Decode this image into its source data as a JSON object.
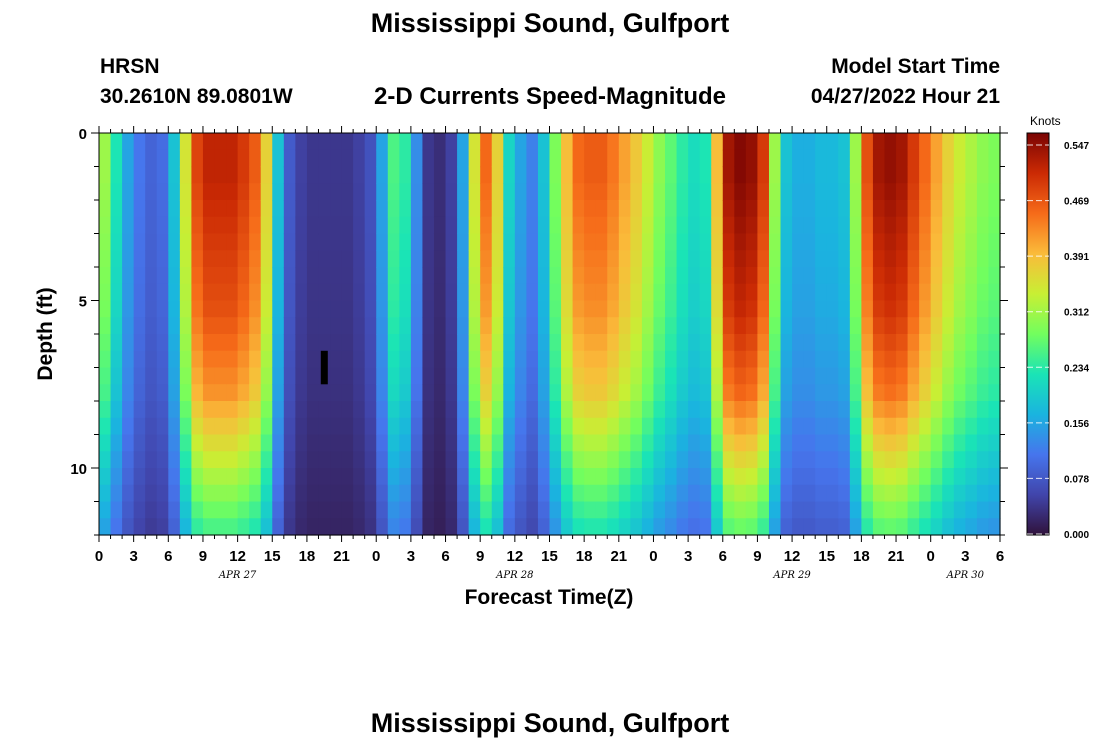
{
  "header": {
    "title": "Mississippi Sound, Gulfport",
    "station": "HRSN",
    "coordinates": "30.2610N  89.0801W",
    "subtitle": "2-D Currents Speed-Magnitude",
    "model_start_label": "Model Start Time",
    "model_start_value": "04/27/2022 Hour 21"
  },
  "footer": {
    "title": "Mississippi Sound, Gulfport"
  },
  "chart_data": {
    "type": "heatmap",
    "title": "2-D Currents Speed-Magnitude",
    "xlabel": "Forecast Time(Z)",
    "ylabel": "Depth (ft)",
    "colorbar_label": "Knots",
    "colorbar_ticks": [
      "0.547",
      "0.469",
      "0.391",
      "0.312",
      "0.234",
      "0.156",
      "0.078",
      "0.000"
    ],
    "colorbar_range": [
      0,
      0.547
    ],
    "x_hours_range": [
      0,
      78
    ],
    "x_tick_labels": [
      "0",
      "3",
      "6",
      "9",
      "12",
      "15",
      "18",
      "21",
      "0",
      "3",
      "6",
      "9",
      "12",
      "15",
      "18",
      "21",
      "0",
      "3",
      "6",
      "9",
      "12",
      "15",
      "18",
      "21",
      "0",
      "3",
      "6"
    ],
    "date_labels": [
      {
        "hour": 12,
        "label": "APR 27"
      },
      {
        "hour": 36,
        "label": "APR 28"
      },
      {
        "hour": 60,
        "label": "APR 29"
      },
      {
        "hour": 75,
        "label": "APR 30"
      }
    ],
    "y_range": [
      0,
      12
    ],
    "y_ticks": [
      "0",
      "5",
      "10"
    ],
    "y_tick_values": [
      0,
      5,
      10
    ],
    "hour_profile_hours": [
      0,
      1,
      2,
      3,
      4,
      5,
      6,
      7,
      8,
      9,
      10,
      11,
      12,
      13,
      14,
      15,
      16,
      17,
      18,
      19,
      20,
      21,
      22,
      23,
      24,
      25,
      26,
      27,
      28,
      29,
      30,
      31,
      32,
      33,
      34,
      35,
      36,
      37,
      38,
      39,
      40,
      41,
      42,
      43,
      44,
      45,
      46,
      47,
      48,
      49,
      50,
      51,
      52,
      53,
      54,
      55,
      56,
      57,
      58,
      59,
      60,
      61,
      62,
      63,
      64,
      65,
      66,
      67,
      68,
      69,
      70,
      71,
      72,
      73,
      74,
      75,
      76,
      77
    ],
    "surface_speed_knots": [
      0.3,
      0.22,
      0.15,
      0.11,
      0.09,
      0.1,
      0.18,
      0.34,
      0.47,
      0.5,
      0.5,
      0.5,
      0.48,
      0.45,
      0.36,
      0.18,
      0.08,
      0.05,
      0.04,
      0.04,
      0.04,
      0.04,
      0.05,
      0.07,
      0.15,
      0.25,
      0.23,
      0.13,
      0.04,
      0.03,
      0.05,
      0.15,
      0.34,
      0.44,
      0.36,
      0.2,
      0.15,
      0.12,
      0.18,
      0.28,
      0.38,
      0.44,
      0.45,
      0.45,
      0.43,
      0.4,
      0.37,
      0.33,
      0.29,
      0.26,
      0.23,
      0.21,
      0.22,
      0.38,
      0.52,
      0.54,
      0.53,
      0.48,
      0.3,
      0.18,
      0.16,
      0.16,
      0.17,
      0.17,
      0.18,
      0.3,
      0.46,
      0.52,
      0.53,
      0.52,
      0.48,
      0.44,
      0.4,
      0.36,
      0.33,
      0.31,
      0.29,
      0.28
    ],
    "depth_factor": [
      1.0,
      1.0,
      1.0,
      0.99,
      0.98,
      0.97,
      0.96,
      0.95,
      0.94,
      0.93,
      0.92,
      0.9,
      0.88,
      0.86,
      0.84,
      0.82,
      0.78,
      0.74,
      0.7,
      0.66,
      0.62,
      0.58,
      0.54,
      0.5
    ],
    "marker": {
      "hour": 19.5,
      "depth_from": 6.5,
      "depth_to": 7.5
    }
  }
}
